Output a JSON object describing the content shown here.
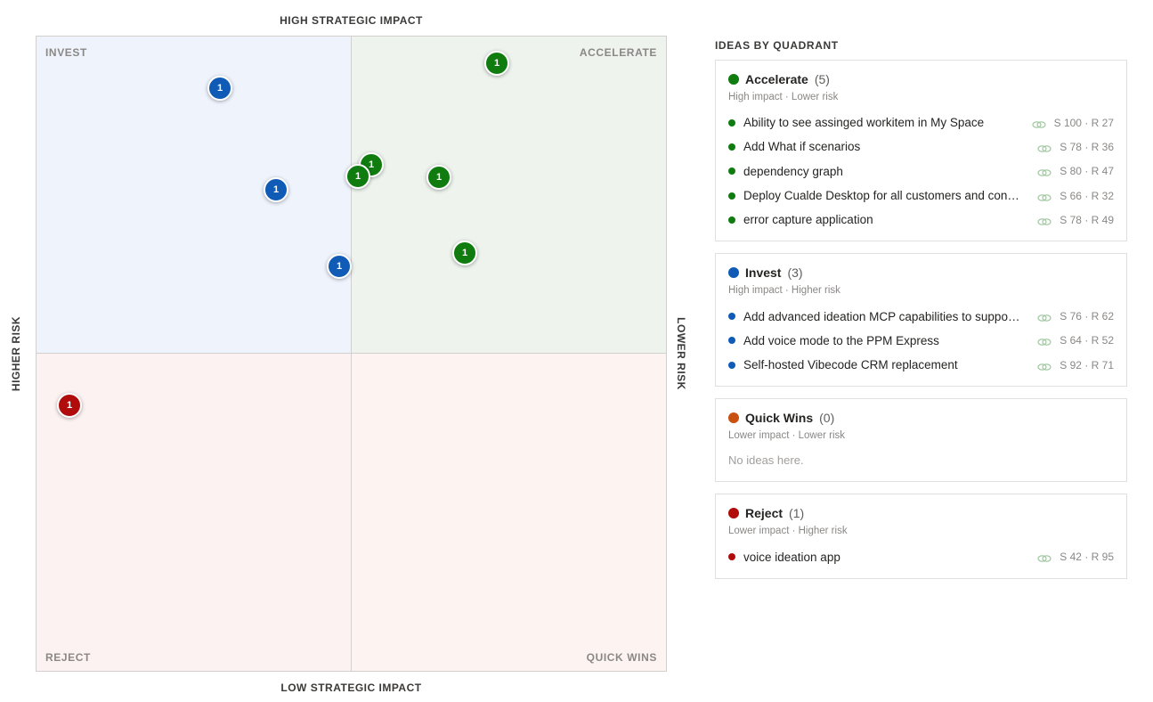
{
  "axes": {
    "top": "HIGH STRATEGIC IMPACT",
    "bottom": "LOW STRATEGIC IMPACT",
    "left": "HIGHER RISK",
    "right": "LOWER RISK"
  },
  "quadrant_labels": {
    "invest": "INVEST",
    "accelerate": "ACCELERATE",
    "reject": "REJECT",
    "quick_wins": "QUICK WINS"
  },
  "colors": {
    "accelerate": "#107c10",
    "invest": "#0f5bb5",
    "quick_wins": "#ca5010",
    "reject": "#b00c0c"
  },
  "chart_data": {
    "type": "scatter",
    "x_axis": "strategic impact",
    "y_axis": "risk",
    "points": [
      {
        "label": "1",
        "quadrant": "accelerate",
        "strategic": 100,
        "risk": 27
      },
      {
        "label": "1",
        "quadrant": "accelerate",
        "strategic": 78,
        "risk": 36
      },
      {
        "label": "1",
        "quadrant": "accelerate",
        "strategic": 80,
        "risk": 47
      },
      {
        "label": "1",
        "quadrant": "accelerate",
        "strategic": 66,
        "risk": 32
      },
      {
        "label": "1",
        "quadrant": "accelerate",
        "strategic": 78,
        "risk": 49
      },
      {
        "label": "1",
        "quadrant": "invest",
        "strategic": 76,
        "risk": 62
      },
      {
        "label": "1",
        "quadrant": "invest",
        "strategic": 64,
        "risk": 52
      },
      {
        "label": "1",
        "quadrant": "invest",
        "strategic": 92,
        "risk": 71
      },
      {
        "label": "1",
        "quadrant": "reject",
        "strategic": 42,
        "risk": 95
      }
    ]
  },
  "panel": {
    "title": "IDEAS BY QUADRANT",
    "groups": [
      {
        "key": "accelerate",
        "name": "Accelerate",
        "count": "(5)",
        "subtitle": "High impact · Lower risk",
        "color": "#107c10",
        "empty_text": "",
        "items": [
          {
            "title": "Ability to see assinged workitem in My Space",
            "score": "S 100 · R 27"
          },
          {
            "title": "Add What if scenarios",
            "score": "S 78 · R 36"
          },
          {
            "title": "dependency graph",
            "score": "S 80 · R 47"
          },
          {
            "title": "Deploy Cualde Desktop for all customers and con…",
            "score": "S 66 · R 32"
          },
          {
            "title": "error capture application",
            "score": "S 78 · R 49"
          }
        ]
      },
      {
        "key": "invest",
        "name": "Invest",
        "count": "(3)",
        "subtitle": "High impact · Higher risk",
        "color": "#0f5bb5",
        "empty_text": "",
        "items": [
          {
            "title": "Add advanced ideation MCP capabilities to suppo…",
            "score": "S 76 · R 62"
          },
          {
            "title": "Add voice mode to the PPM Express",
            "score": "S 64 · R 52"
          },
          {
            "title": "Self-hosted Vibecode CRM replacement",
            "score": "S 92 · R 71"
          }
        ]
      },
      {
        "key": "quick_wins",
        "name": "Quick Wins",
        "count": "(0)",
        "subtitle": "Lower impact · Lower risk",
        "color": "#ca5010",
        "empty_text": "No ideas here.",
        "items": []
      },
      {
        "key": "reject",
        "name": "Reject",
        "count": "(1)",
        "subtitle": "Lower impact · Higher risk",
        "color": "#b00c0c",
        "empty_text": "",
        "items": [
          {
            "title": "voice ideation app",
            "score": "S 42 · R 95"
          }
        ]
      }
    ]
  }
}
